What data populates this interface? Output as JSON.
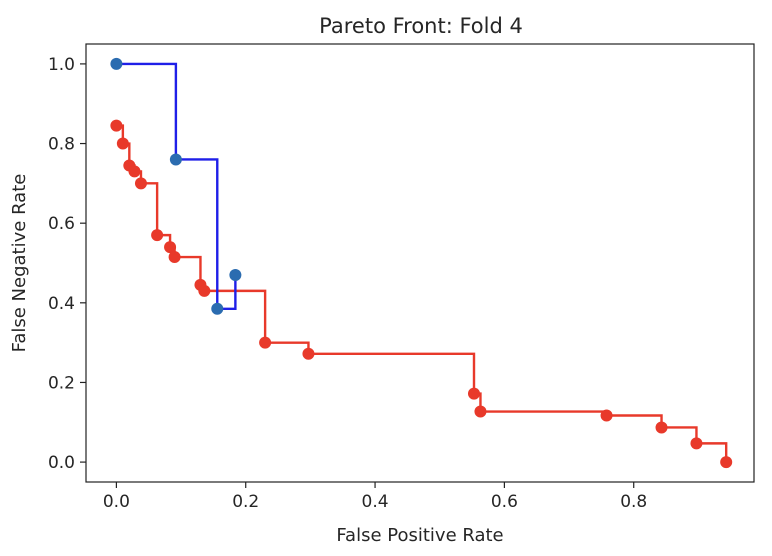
{
  "chart_data": {
    "type": "line",
    "title": "Pareto Front: Fold 4",
    "xlabel": "False Positive Rate",
    "ylabel": "False Negative Rate",
    "xlim": [
      -0.047,
      0.986
    ],
    "ylim": [
      -0.05,
      1.05
    ],
    "x_ticks": [
      0.0,
      0.2,
      0.4,
      0.6,
      0.8
    ],
    "y_ticks": [
      0.0,
      0.2,
      0.4,
      0.6,
      0.8,
      1.0
    ],
    "x_tick_labels": [
      "0.0",
      "0.2",
      "0.4",
      "0.6",
      "0.8"
    ],
    "y_tick_labels": [
      "0.0",
      "0.2",
      "0.4",
      "0.6",
      "0.8",
      "1.0"
    ],
    "grid": false,
    "series": [
      {
        "color": "#1f1fe8",
        "marker_color": "#2b6cb0",
        "step": "post",
        "points": [
          {
            "x": 0.0,
            "y": 1.0
          },
          {
            "x": 0.092,
            "y": 0.76
          },
          {
            "x": 0.156,
            "y": 0.385
          },
          {
            "x": 0.184,
            "y": 0.47
          }
        ]
      },
      {
        "color": "#e8392a",
        "marker_color": "#e8392a",
        "step": "post",
        "points": [
          {
            "x": 0.0,
            "y": 0.845
          },
          {
            "x": 0.01,
            "y": 0.8
          },
          {
            "x": 0.02,
            "y": 0.745
          },
          {
            "x": 0.028,
            "y": 0.73
          },
          {
            "x": 0.038,
            "y": 0.7
          },
          {
            "x": 0.063,
            "y": 0.57
          },
          {
            "x": 0.083,
            "y": 0.54
          },
          {
            "x": 0.09,
            "y": 0.515
          },
          {
            "x": 0.13,
            "y": 0.445
          },
          {
            "x": 0.136,
            "y": 0.43
          },
          {
            "x": 0.23,
            "y": 0.3
          },
          {
            "x": 0.297,
            "y": 0.272
          },
          {
            "x": 0.553,
            "y": 0.172
          },
          {
            "x": 0.563,
            "y": 0.127
          },
          {
            "x": 0.758,
            "y": 0.117
          },
          {
            "x": 0.843,
            "y": 0.087
          },
          {
            "x": 0.897,
            "y": 0.047
          },
          {
            "x": 0.943,
            "y": 0.0
          }
        ]
      }
    ]
  }
}
